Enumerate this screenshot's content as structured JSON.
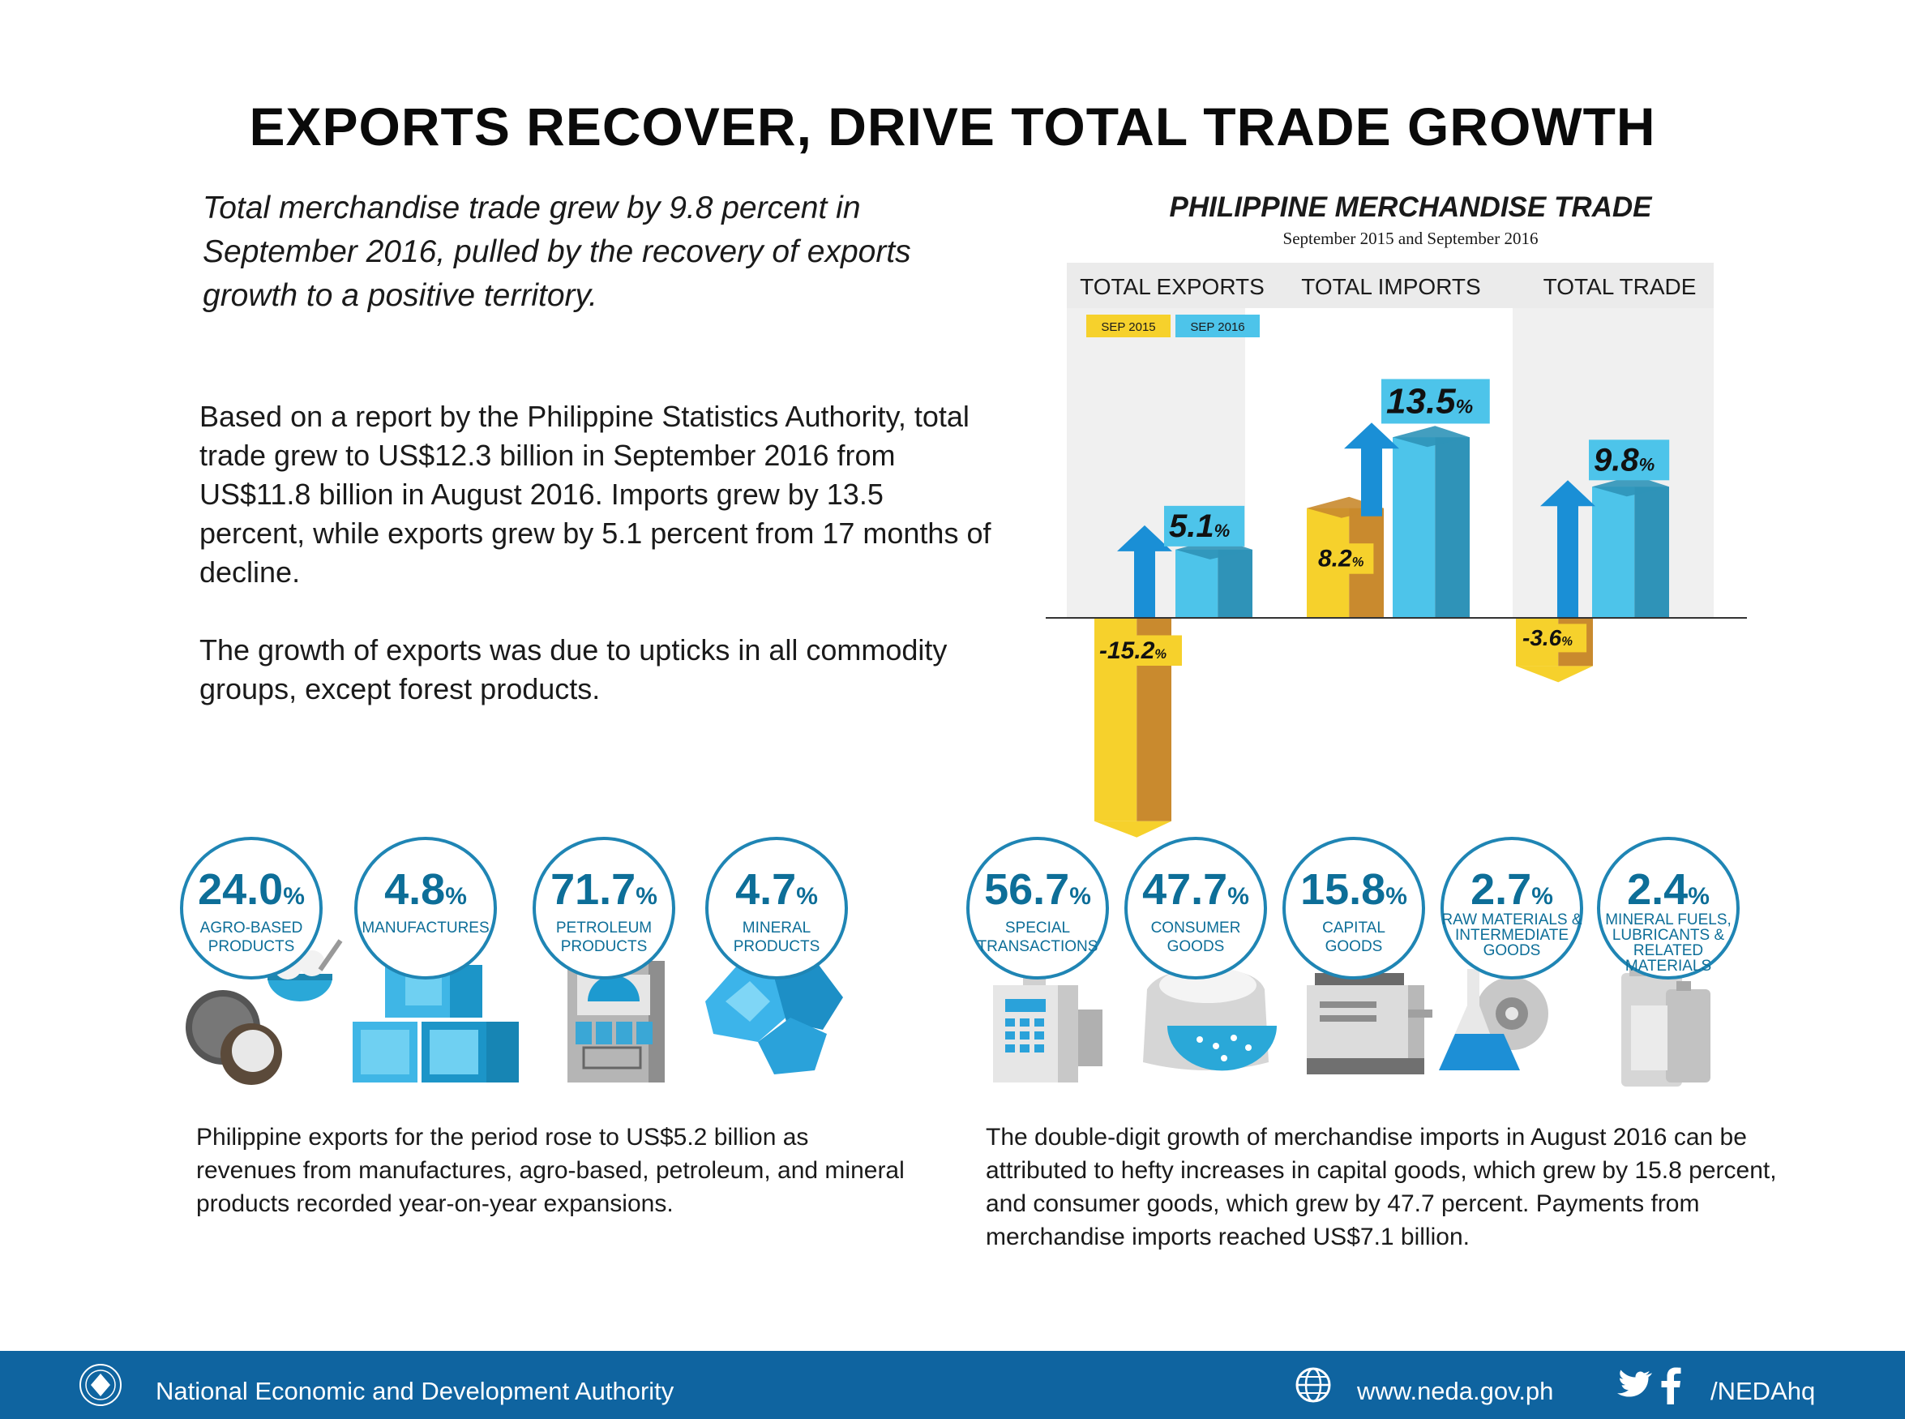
{
  "header": {
    "title": "EXPORTS RECOVER, DRIVE TOTAL TRADE GROWTH"
  },
  "intro": {
    "lead": "Total merchandise trade grew by 9.8 percent in September 2016, pulled by the recovery of exports growth to a positive territory.",
    "paragraph_1": "Based on a report by the Philippine Statistics Authority, total trade grew to US$12.3 billion in September 2016 from US$11.8 billion in August 2016. Imports grew by 13.5 percent, while exports grew by 5.1 percent from 17 months of decline.",
    "paragraph_2": "The growth of exports was due to upticks in all commodity groups, except forest products."
  },
  "chart_data": [
    {
      "type": "bar",
      "title": "PHILIPPINE MERCHANDISE TRADE",
      "subtitle": "September 2015 and September 2016",
      "categories": [
        "TOTAL EXPORTS",
        "TOTAL IMPORTS",
        "TOTAL TRADE"
      ],
      "series": [
        {
          "name": "SEP 2015",
          "values": [
            -15.2,
            8.2,
            -3.6
          ],
          "labels": [
            "-15.2",
            "8.2",
            "-3.6"
          ]
        },
        {
          "name": "SEP 2016",
          "values": [
            5.1,
            13.5,
            9.8
          ],
          "labels": [
            "5.1",
            "13.5",
            "9.8"
          ]
        }
      ],
      "unit": "%",
      "colors": {
        "sep_2015": "#f6d12c",
        "sep_2015_side": "#c98a2e",
        "sep_2016": "#4dc4ea",
        "sep_2016_side": "#2f93b8",
        "arrow": "#1a8fd6",
        "panel": "#f0f0f0"
      }
    },
    {
      "type": "table",
      "group": "exports",
      "categories": [
        "AGRO-BASED PRODUCTS",
        "MANUFACTURES",
        "PETROLEUM PRODUCTS",
        "MINERAL PRODUCTS"
      ],
      "values": [
        24.0,
        4.8,
        71.7,
        4.7
      ],
      "labels": [
        "24.0",
        "4.8",
        "71.7",
        "4.7"
      ],
      "unit": "%"
    },
    {
      "type": "table",
      "group": "imports",
      "categories": [
        "SPECIAL TRANSACTIONS",
        "CONSUMER GOODS",
        "CAPITAL GOODS",
        "RAW MATERIALS & INTERMEDIATE GOODS",
        "MINERAL FUELS, LUBRICANTS & RELATED MATERIALS"
      ],
      "values": [
        56.7,
        47.7,
        15.8,
        2.7,
        2.4
      ],
      "labels": [
        "56.7",
        "47.7",
        "15.8",
        "2.7",
        "2.4"
      ],
      "unit": "%"
    }
  ],
  "circle_labels": {
    "exports": [
      [
        "AGRO-BASED",
        "PRODUCTS"
      ],
      [
        "MANUFACTURES"
      ],
      [
        "PETROLEUM",
        "PRODUCTS"
      ],
      [
        "MINERAL",
        "PRODUCTS"
      ]
    ],
    "imports": [
      [
        "SPECIAL",
        "TRANSACTIONS"
      ],
      [
        "CONSUMER",
        "GOODS"
      ],
      [
        "CAPITAL",
        "GOODS"
      ],
      [
        "RAW MATERIALS &",
        "INTERMEDIATE",
        "GOODS"
      ],
      [
        "MINERAL FUELS,",
        "LUBRICANTS &",
        "RELATED",
        "MATERIALS"
      ]
    ],
    "icons": {
      "exports": [
        "coconut-bowl-icon",
        "boxes-icon",
        "fuel-pump-icon",
        "mineral-rocks-icon"
      ],
      "imports": [
        "cash-register-icon",
        "rice-sack-icon",
        "copier-icon",
        "flask-gear-icon",
        "fuel-jugs-icon"
      ]
    }
  },
  "exports_text": "Philippine exports for the period rose to US$5.2 billion as revenues from manufactures, agro-based, petroleum, and mineral products recorded year-on-year expansions.",
  "imports_text": "The double-digit growth of merchandise imports in August 2016 can be attributed to hefty increases in capital goods, which grew by 15.8 percent, and consumer goods, which grew by 47.7 percent. Payments from merchandise imports reached US$7.1 billion.",
  "footer": {
    "org": "National Economic and Development Authority",
    "website": "www.neda.gov.ph",
    "handle": "/NEDAhq",
    "icons": [
      "neda-seal-icon",
      "globe-icon",
      "twitter-icon",
      "facebook-icon"
    ]
  }
}
